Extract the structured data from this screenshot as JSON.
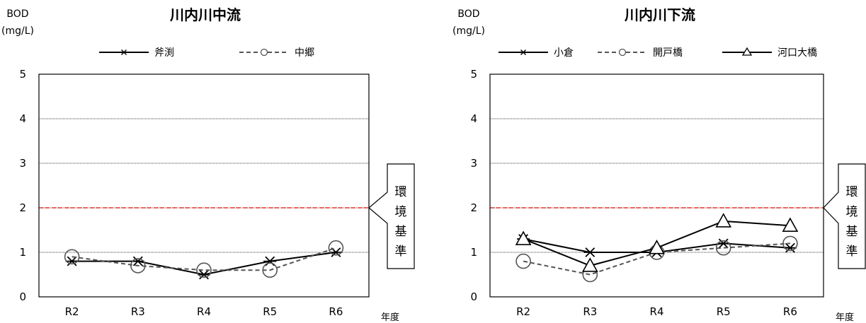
{
  "common": {
    "unit_top": "BOD",
    "unit_bottom": "(mg/L)",
    "x_axis_label": "年度",
    "standard_label_chars": [
      "環",
      "境",
      "基",
      "準"
    ],
    "standard_value": 2,
    "standard_color": "#e8332a"
  },
  "chart_data": [
    {
      "type": "line",
      "title": "川内川中流",
      "ylabel": "BOD (mg/L)",
      "xlabel": "年度",
      "categories": [
        "R2",
        "R3",
        "R4",
        "R5",
        "R6"
      ],
      "ylim": [
        0,
        5
      ],
      "yticks": [
        0,
        1,
        2,
        3,
        4,
        5
      ],
      "grid": true,
      "legend_position": "top",
      "series": [
        {
          "name": "斧渕",
          "marker": "asterisk",
          "line": "solid",
          "values": [
            0.8,
            0.8,
            0.5,
            0.8,
            1.0
          ]
        },
        {
          "name": "中郷",
          "marker": "circle",
          "line": "dashed",
          "values": [
            0.9,
            0.7,
            0.6,
            0.6,
            1.1
          ]
        }
      ]
    },
    {
      "type": "line",
      "title": "川内川下流",
      "ylabel": "BOD (mg/L)",
      "xlabel": "年度",
      "categories": [
        "R2",
        "R3",
        "R4",
        "R5",
        "R6"
      ],
      "ylim": [
        0,
        5
      ],
      "yticks": [
        0,
        1,
        2,
        3,
        4,
        5
      ],
      "grid": true,
      "legend_position": "top",
      "series": [
        {
          "name": "小倉",
          "marker": "asterisk",
          "line": "solid",
          "values": [
            1.3,
            1.0,
            1.0,
            1.2,
            1.1
          ]
        },
        {
          "name": "開戸橋",
          "marker": "circle",
          "line": "dashed",
          "values": [
            0.8,
            0.5,
            1.0,
            1.1,
            1.2
          ]
        },
        {
          "name": "河口大橋",
          "marker": "triangle",
          "line": "solid",
          "values": [
            1.3,
            0.7,
            1.1,
            1.7,
            1.6
          ]
        }
      ]
    }
  ]
}
